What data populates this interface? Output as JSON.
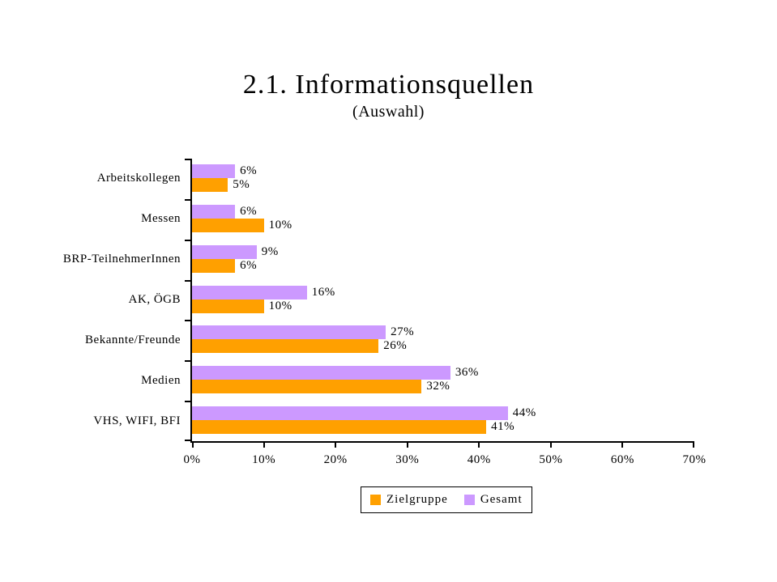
{
  "title": "2.1. Informationsquellen",
  "subtitle": "(Auswahl)",
  "chart_data": {
    "type": "bar",
    "orientation": "horizontal",
    "title": "2.1. Informationsquellen",
    "subtitle": "(Auswahl)",
    "categories": [
      "Arbeitskollegen",
      "Messen",
      "BRP-TeilnehmerInnen",
      "AK, ÖGB",
      "Bekannte/Freunde",
      "Medien",
      "VHS, WIFI, BFI"
    ],
    "series": [
      {
        "name": "Zielgruppe",
        "color": "#FFA000",
        "values": [
          5,
          10,
          6,
          10,
          26,
          32,
          41
        ]
      },
      {
        "name": "Gesamt",
        "color": "#CC99FF",
        "values": [
          6,
          6,
          9,
          16,
          27,
          36,
          44
        ]
      }
    ],
    "group_order_top_to_bottom": [
      "Gesamt",
      "Zielgruppe"
    ],
    "value_suffix": "%",
    "data_labels": true,
    "xlim": [
      0,
      70
    ],
    "x_ticks": [
      "0%",
      "10%",
      "20%",
      "30%",
      "40%",
      "50%",
      "60%",
      "70%"
    ],
    "grid": false,
    "legend_position": "bottom",
    "axis_color": "#000000",
    "background_color": "#FFFFFF"
  }
}
